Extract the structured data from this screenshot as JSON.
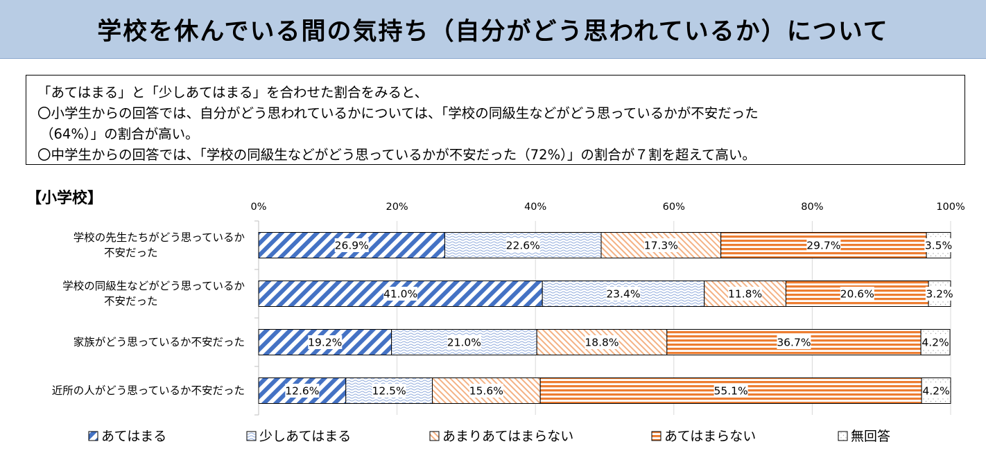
{
  "title": "学校を休んでいる間の気持ち（自分がどう思われているか）について",
  "summary": [
    "「あてはまる」と「少しあてはまる」を合わせた割合をみると、",
    "〇小学生からの回答では、自分がどう思われているかについては、「学校の同級生などがどう思っているかが不安だった",
    "（64%）」の割合が高い。",
    "〇中学生からの回答では、「学校の同級生などがどう思っているかが不安だった（72%）」の割合が７割を超えて高い。"
  ],
  "section_label": "【小学校】",
  "chart_data": {
    "type": "bar",
    "orientation": "horizontal",
    "stacked": true,
    "percent_scale": true,
    "xlim": [
      0,
      100
    ],
    "ticks": [
      "0%",
      "20%",
      "40%",
      "60%",
      "80%",
      "100%"
    ],
    "categories": [
      [
        "学校の先生たちがどう思っているか",
        "不安だった"
      ],
      [
        "学校の同級生などがどう思っているか",
        "不安だった"
      ],
      [
        "家族がどう思っているか不安だった"
      ],
      [
        "近所の人がどう思っているか不安だった"
      ]
    ],
    "series": [
      {
        "name": "あてはまる",
        "values": [
          26.9,
          41.0,
          19.2,
          12.6
        ],
        "labels": [
          "26.9%",
          "41.0%",
          "19.2%",
          "12.6%"
        ],
        "color": "#4472c4",
        "pattern": "diagonal-stripes"
      },
      {
        "name": "少しあてはまる",
        "values": [
          22.6,
          23.4,
          21.0,
          12.5
        ],
        "labels": [
          "22.6%",
          "23.4%",
          "21.0%",
          "12.5%"
        ],
        "color": "#8faadc",
        "pattern": "wave"
      },
      {
        "name": "あまりあてはまらない",
        "values": [
          17.3,
          11.8,
          18.8,
          15.6
        ],
        "labels": [
          "17.3%",
          "11.8%",
          "18.8%",
          "15.6%"
        ],
        "color": "#f4b183",
        "pattern": "hatch"
      },
      {
        "name": "あてはまらない",
        "values": [
          29.7,
          20.6,
          36.7,
          55.1
        ],
        "labels": [
          "29.7%",
          "20.6%",
          "36.7%",
          "55.1%"
        ],
        "color": "#ed7d31",
        "pattern": "horizontal-stripes"
      },
      {
        "name": "無回答",
        "values": [
          3.5,
          3.2,
          4.2,
          4.2
        ],
        "labels": [
          "3.5%",
          "3.2%",
          "4.2%",
          "4.2%"
        ],
        "color": "#a6a6a6",
        "pattern": "dots"
      }
    ],
    "legend_position": "bottom",
    "grid": true
  }
}
